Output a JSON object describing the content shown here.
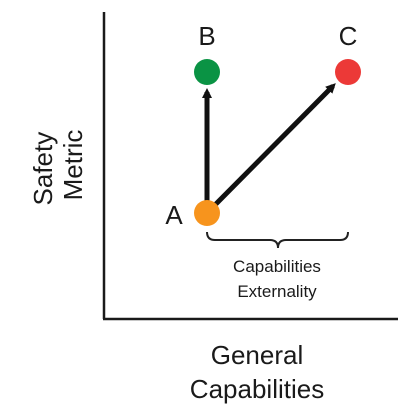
{
  "diagram": {
    "y_axis_title_lines": [
      "Safety",
      "Metric"
    ],
    "x_axis_title_lines": [
      "General",
      "Capabilities"
    ],
    "points": [
      {
        "id": "A",
        "label": "A",
        "color": "#f7941d"
      },
      {
        "id": "B",
        "label": "B",
        "color": "#0a9344"
      },
      {
        "id": "C",
        "label": "C",
        "color": "#ec3937"
      }
    ],
    "arrows": [
      {
        "from": "A",
        "to": "B"
      },
      {
        "from": "A",
        "to": "C"
      }
    ],
    "brace": {
      "label_lines": [
        "Capabilities",
        "Externality"
      ]
    },
    "colors": {
      "axis": "#1a1a1a",
      "arrow": "#111111",
      "brace": "#222222",
      "background": "#ffffff"
    }
  }
}
